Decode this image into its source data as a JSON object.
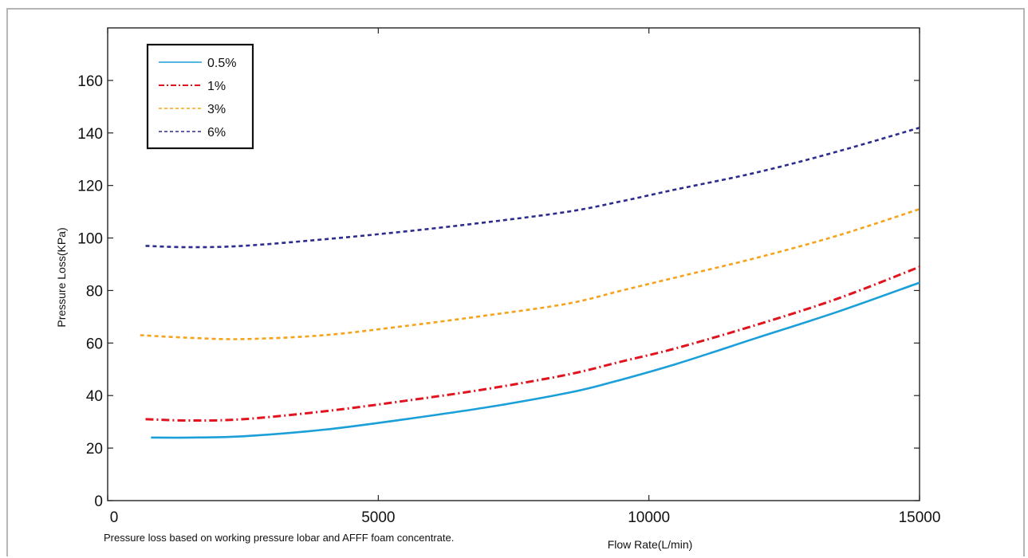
{
  "chart_data": {
    "type": "line",
    "title": "",
    "xlabel": "Flow Rate(L/min)",
    "ylabel": "Pressure Loss(KPa)",
    "xlim": [
      0,
      15000
    ],
    "ylim": [
      0,
      180
    ],
    "xticks": [
      0,
      5000,
      10000,
      15000
    ],
    "yticks": [
      0,
      20,
      40,
      60,
      80,
      100,
      120,
      140,
      160
    ],
    "grid": false,
    "legend_position": "top-left",
    "note": "Pressure loss based on working pressure lobar and AFFF foam concentrate.",
    "series": [
      {
        "name": "0.5%",
        "color": "#1a9fd9",
        "style": "solid",
        "x": [
          800,
          1500,
          2500,
          4000,
          5500,
          7000,
          8500,
          9300,
          10500,
          12000,
          13500,
          15000
        ],
        "y": [
          24,
          24,
          24.5,
          27,
          31,
          35.5,
          41,
          45,
          52,
          62,
          72,
          83
        ]
      },
      {
        "name": "1%",
        "color": "#e0141e",
        "style": "dashdot",
        "x": [
          700,
          1500,
          2500,
          4000,
          5500,
          7000,
          8500,
          9500,
          10500,
          12000,
          13500,
          15000
        ],
        "y": [
          31,
          30.5,
          31,
          34,
          38,
          42.5,
          48,
          53,
          58,
          67,
          77,
          89
        ]
      },
      {
        "name": "3%",
        "color": "#f5a31a",
        "style": "dashed",
        "x": [
          600,
          1500,
          2500,
          4000,
          5500,
          7000,
          8500,
          9500,
          10500,
          12000,
          13500,
          15000
        ],
        "y": [
          63,
          62,
          61.5,
          63,
          66.5,
          70.5,
          75,
          80,
          85,
          92.5,
          101,
          111
        ]
      },
      {
        "name": "6%",
        "color": "#2c2c8c",
        "style": "dashed",
        "x": [
          700,
          1500,
          2500,
          4000,
          5500,
          7000,
          8500,
          9500,
          10500,
          12000,
          13500,
          15000
        ],
        "y": [
          97,
          96.5,
          97,
          99.5,
          102.5,
          106,
          110,
          114,
          118.5,
          125,
          133,
          142
        ]
      }
    ]
  }
}
